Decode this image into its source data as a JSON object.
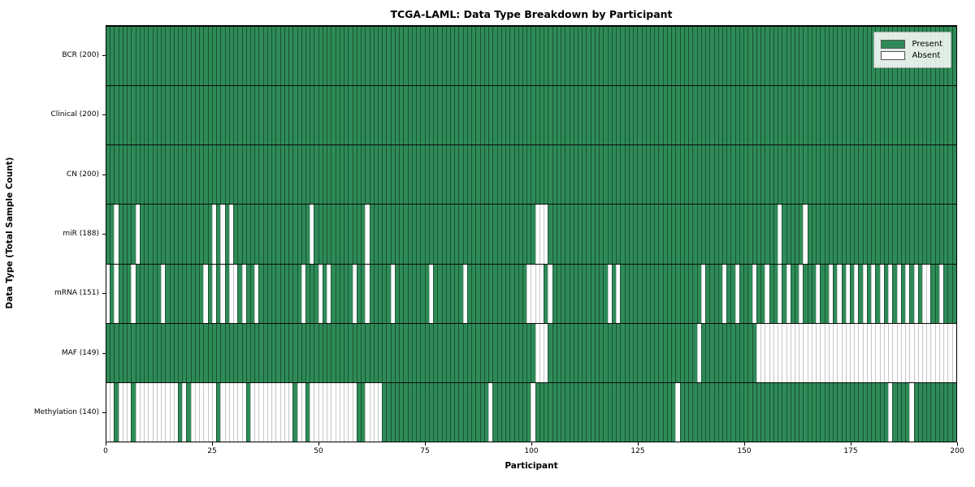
{
  "title": "TCGA-LAML: Data Type Breakdown by Participant",
  "axes": {
    "x_label": "Participant",
    "y_label": "Data Type (Total Sample Count)",
    "x_ticks": [
      0,
      25,
      50,
      75,
      100,
      125,
      150,
      175,
      200
    ],
    "x_range": [
      0,
      200
    ]
  },
  "legend": {
    "items": [
      {
        "label": "Present",
        "color": "#2e8b57"
      },
      {
        "label": "Absent",
        "color": "#ffffff"
      }
    ]
  },
  "colors": {
    "present_fill": "#2e8b57",
    "absent_fill": "#fefefe",
    "present_edge": "rgba(8,38,22,0.55)",
    "absent_edge": "#c7c7c7",
    "border": "#000000"
  },
  "chart_data": {
    "type": "heatmap",
    "title": "TCGA-LAML: Data Type Breakdown by Participant",
    "xlabel": "Participant",
    "ylabel": "Data Type (Total Sample Count)",
    "xlim": [
      0,
      200
    ],
    "n_participants": 200,
    "legend_position": "upper right",
    "value_encoding": {
      "present": "#2e8b57",
      "absent": "#ffffff"
    },
    "rows": [
      {
        "label": "BCR (200)",
        "data_type": "BCR",
        "present_count": 200,
        "absent_participants": []
      },
      {
        "label": "Clinical (200)",
        "data_type": "Clinical",
        "present_count": 200,
        "absent_participants": []
      },
      {
        "label": "CN (200)",
        "data_type": "CN",
        "present_count": 200,
        "absent_participants": []
      },
      {
        "label": "miR (188)",
        "data_type": "miR",
        "present_count": 188,
        "absent_participants": [
          2,
          7,
          25,
          27,
          29,
          48,
          61,
          101,
          102,
          103,
          158,
          164
        ]
      },
      {
        "label": "mRNA (151)",
        "data_type": "mRNA",
        "present_count": 151,
        "absent_participants": [
          0,
          2,
          6,
          13,
          23,
          25,
          27,
          29,
          30,
          32,
          35,
          46,
          50,
          52,
          58,
          61,
          67,
          76,
          84,
          99,
          100,
          101,
          102,
          104,
          118,
          120,
          140,
          145,
          148,
          152,
          155,
          158,
          160,
          163,
          167,
          170,
          172,
          174,
          176,
          178,
          180,
          182,
          184,
          186,
          188,
          190,
          192,
          193,
          196
        ]
      },
      {
        "label": "MAF (149)",
        "data_type": "MAF",
        "present_count": 149,
        "absent_participants": [
          101,
          102,
          103,
          139,
          153,
          154,
          155,
          156,
          157,
          158,
          159,
          160,
          161,
          162,
          163,
          164,
          165,
          166,
          167,
          168,
          169,
          170,
          171,
          172,
          173,
          174,
          175,
          176,
          177,
          178,
          179,
          180,
          181,
          182,
          183,
          184,
          185,
          186,
          187,
          188,
          189,
          190,
          191,
          192,
          193,
          194,
          195,
          196,
          197,
          198,
          199
        ]
      },
      {
        "label": "Methylation (140)",
        "data_type": "Methylation",
        "present_count": 140,
        "absent_participants": [
          0,
          1,
          3,
          4,
          5,
          7,
          8,
          9,
          10,
          11,
          12,
          13,
          14,
          15,
          16,
          18,
          20,
          21,
          22,
          23,
          24,
          25,
          27,
          28,
          29,
          30,
          31,
          32,
          34,
          35,
          36,
          37,
          38,
          39,
          40,
          41,
          42,
          43,
          45,
          46,
          48,
          49,
          50,
          51,
          52,
          53,
          54,
          55,
          56,
          57,
          58,
          61,
          62,
          63,
          64,
          90,
          100,
          134,
          184,
          189
        ]
      }
    ]
  }
}
